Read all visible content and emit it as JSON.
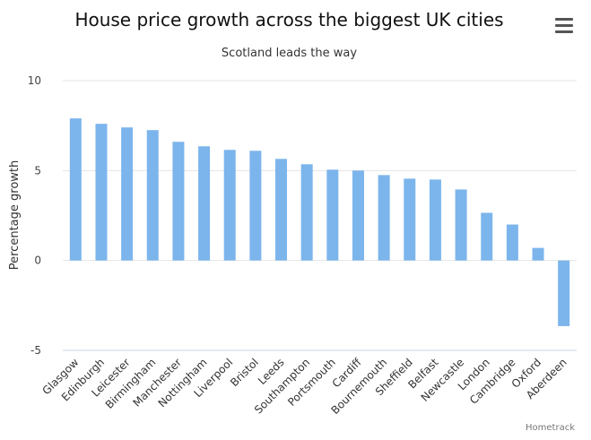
{
  "menu": {
    "icon": "hamburger-menu-icon"
  },
  "credits": "Hometrack",
  "chart_data": {
    "type": "bar",
    "title": "House price growth across the biggest UK cities",
    "subtitle": "Scotland leads the way",
    "xlabel": "",
    "ylabel": "Percentage growth",
    "ylim": [
      -5,
      10
    ],
    "yticks": [
      -5,
      0,
      5,
      10
    ],
    "grid": true,
    "legend": "none",
    "color": "#7cb5ec",
    "categories": [
      "Glasgow",
      "Edinburgh",
      "Leicester",
      "Birmingham",
      "Manchester",
      "Nottingham",
      "Liverpool",
      "Bristol",
      "Leeds",
      "Southampton",
      "Portsmouth",
      "Cardiff",
      "Bournemouth",
      "Sheffield",
      "Belfast",
      "Newcastle",
      "London",
      "Cambridge",
      "Oxford",
      "Aberdeen"
    ],
    "values": [
      7.9,
      7.6,
      7.4,
      7.25,
      6.6,
      6.35,
      6.15,
      6.1,
      5.65,
      5.35,
      5.05,
      5.0,
      4.75,
      4.55,
      4.5,
      3.95,
      2.65,
      2.0,
      0.7,
      -3.65
    ]
  }
}
